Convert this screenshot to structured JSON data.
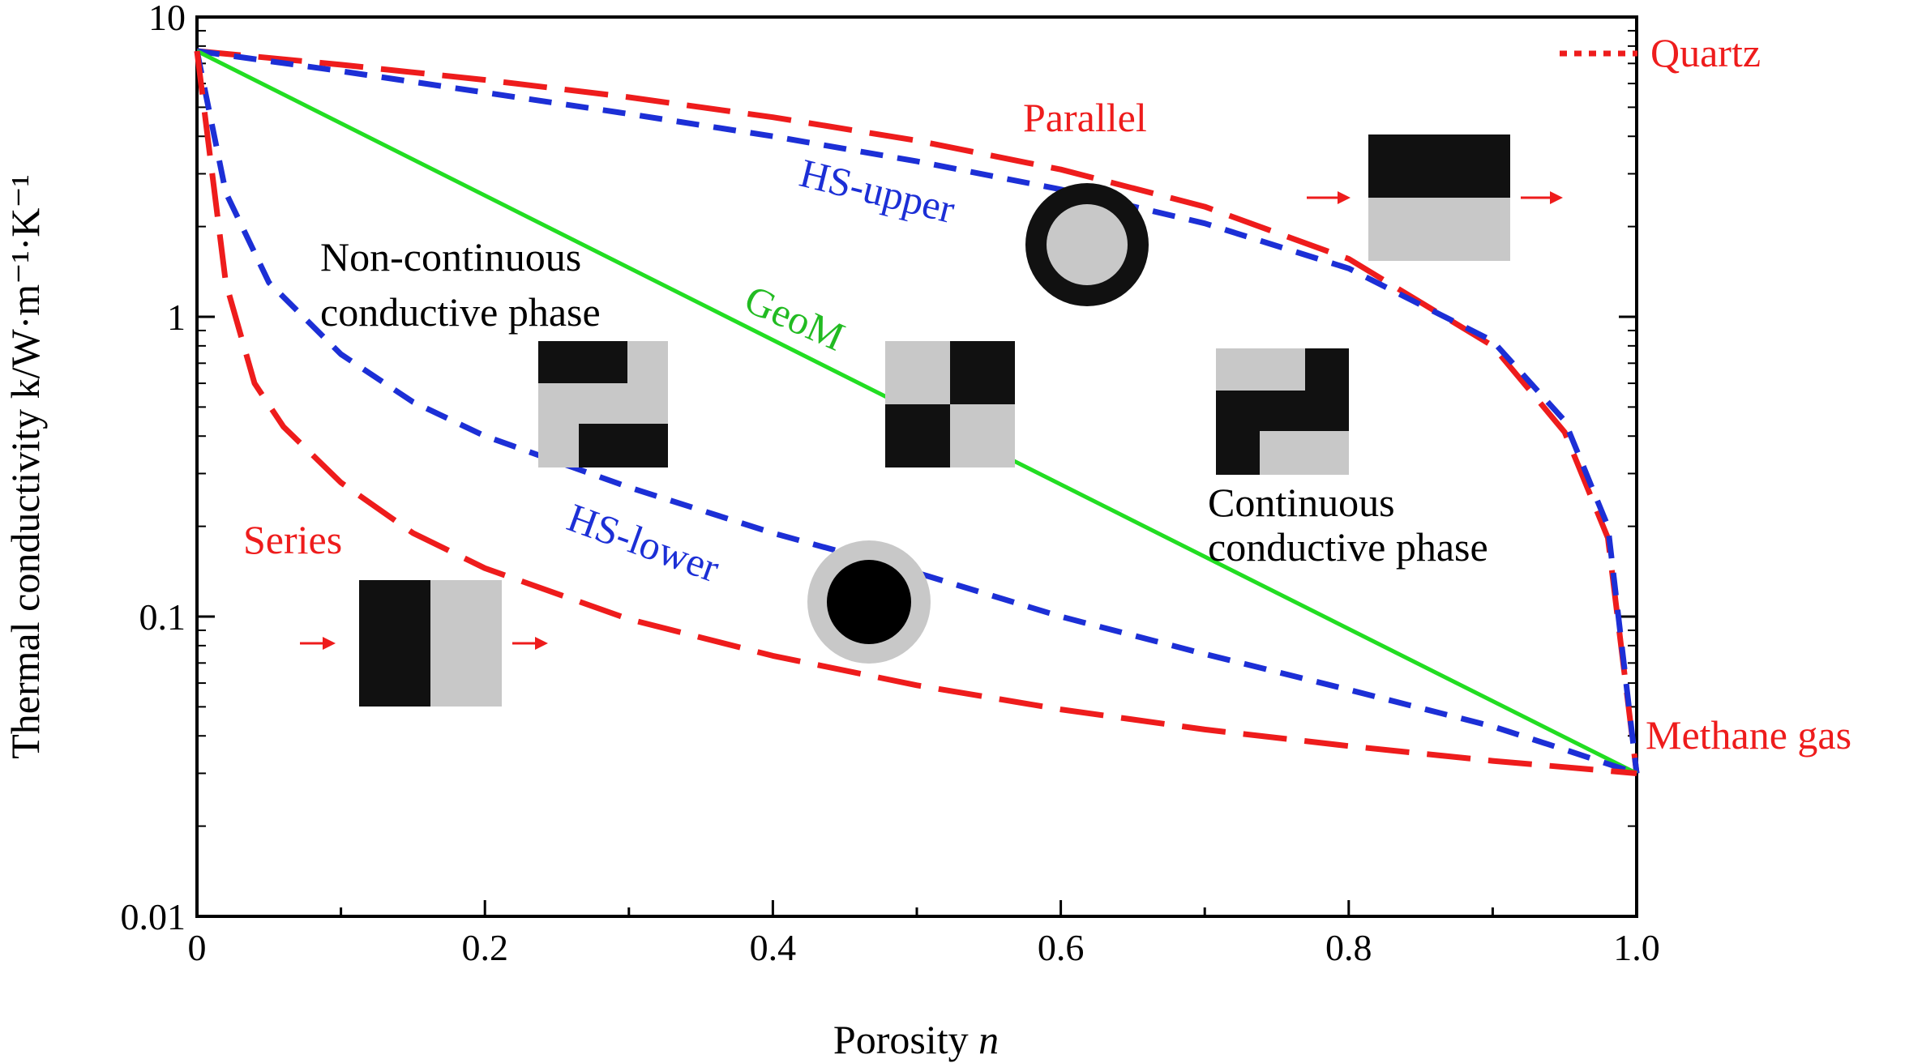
{
  "chart_data": {
    "type": "line",
    "title": "",
    "xlabel": "Porosity",
    "xlabel_var": "n",
    "ylabel": "Thermal conductivity k/W·m⁻¹·K⁻¹",
    "xlim": [
      0,
      1.0
    ],
    "ylim": [
      0.01,
      10
    ],
    "yscale": "log",
    "x_ticks": [
      "0",
      "0.2",
      "0.4",
      "0.6",
      "0.8",
      "1.0"
    ],
    "y_ticks": [
      "0.01",
      "0.1",
      "1",
      "10"
    ],
    "endpoints": {
      "quartz": {
        "label": "Quartz",
        "k": 7.7
      },
      "methane": {
        "label": "Methane gas",
        "k": 0.03
      }
    },
    "series": [
      {
        "name": "Parallel",
        "label": "Parallel",
        "color": "#ee1c1c",
        "style": "long-dash",
        "x": [
          0,
          0.1,
          0.2,
          0.3,
          0.4,
          0.5,
          0.6,
          0.7,
          0.8,
          0.9,
          0.95,
          0.98,
          1.0
        ],
        "y": [
          7.7,
          6.93,
          6.17,
          5.4,
          4.63,
          3.87,
          3.1,
          2.33,
          1.56,
          0.8,
          0.412,
          0.183,
          0.03
        ]
      },
      {
        "name": "HS-upper",
        "label": "HS-upper",
        "color": "#1c2fd6",
        "style": "short-dash",
        "x": [
          0,
          0.1,
          0.2,
          0.3,
          0.4,
          0.5,
          0.6,
          0.7,
          0.8,
          0.9,
          0.95,
          0.98,
          1.0
        ],
        "y": [
          7.7,
          6.6,
          5.6,
          4.75,
          4.0,
          3.3,
          2.66,
          2.05,
          1.45,
          0.83,
          0.45,
          0.2,
          0.03
        ]
      },
      {
        "name": "GeoM",
        "label": "GeoM",
        "color": "#22dd22",
        "style": "solid",
        "x": [
          0,
          1.0
        ],
        "y": [
          7.7,
          0.03
        ]
      },
      {
        "name": "HS-lower",
        "label": "HS-lower",
        "color": "#1c2fd6",
        "style": "short-dash",
        "x": [
          0,
          0.02,
          0.05,
          0.1,
          0.15,
          0.2,
          0.3,
          0.4,
          0.5,
          0.6,
          0.7,
          0.8,
          0.9,
          0.95,
          1.0
        ],
        "y": [
          7.7,
          2.6,
          1.3,
          0.75,
          0.52,
          0.4,
          0.27,
          0.19,
          0.14,
          0.1,
          0.075,
          0.057,
          0.043,
          0.036,
          0.03
        ]
      },
      {
        "name": "Series",
        "label": "Series",
        "color": "#ee1c1c",
        "style": "long-dash",
        "x": [
          0,
          0.02,
          0.04,
          0.06,
          0.1,
          0.15,
          0.2,
          0.3,
          0.4,
          0.5,
          0.6,
          0.7,
          0.8,
          0.9,
          1.0
        ],
        "y": [
          7.7,
          1.3,
          0.6,
          0.43,
          0.28,
          0.19,
          0.145,
          0.098,
          0.074,
          0.059,
          0.049,
          0.042,
          0.037,
          0.033,
          0.03
        ]
      }
    ],
    "annotations": [
      {
        "id": "noncont1",
        "text": "Non-continuous"
      },
      {
        "id": "noncont2",
        "text": "conductive phase"
      },
      {
        "id": "cont1",
        "text": "Continuous"
      },
      {
        "id": "cont2",
        "text": "conductive phase"
      }
    ]
  }
}
